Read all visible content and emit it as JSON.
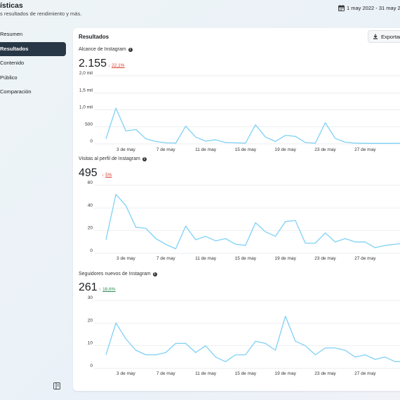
{
  "header": {
    "title": "ísticas",
    "subtitle": "s resultados de rendimiento y más.",
    "date_range": "1 may 2022 - 31 may 202"
  },
  "sidebar": {
    "items": [
      {
        "label": "Resumen",
        "active": false
      },
      {
        "label": "Resultados",
        "active": true
      },
      {
        "label": "Contenido",
        "active": false
      },
      {
        "label": "Público",
        "active": false
      },
      {
        "label": "Comparación",
        "active": false
      }
    ]
  },
  "card": {
    "title": "Resultados",
    "export_label": "Exportar"
  },
  "colors": {
    "accent": "#283746",
    "line": "#7fd1f5",
    "down": "#d93a2b",
    "up": "#2e8b57"
  },
  "metrics": [
    {
      "label": "Alcance de Instagram",
      "value": "2.155",
      "delta": "22,1%",
      "direction": "down"
    },
    {
      "label": "Visitas al perfil de Instagram",
      "value": "495",
      "delta": "5%",
      "direction": "down"
    },
    {
      "label": "Seguidores nuevos de Instagram",
      "value": "261",
      "delta": "18,6%",
      "direction": "up"
    }
  ],
  "chart_data": [
    {
      "type": "line",
      "title": "Alcance de Instagram",
      "x_tick_labels": [
        "3 de may",
        "7 de may",
        "11 de may",
        "15 de may",
        "19 de may",
        "23 de may",
        "27 de may",
        "3"
      ],
      "y_tick_labels": [
        "0",
        "500",
        "1,0 mil",
        "1,5 mil",
        "2,0 mil"
      ],
      "ylim": [
        0,
        2000
      ],
      "grid": true,
      "x": [
        1,
        2,
        3,
        4,
        5,
        6,
        7,
        8,
        9,
        10,
        11,
        12,
        13,
        14,
        15,
        16,
        17,
        18,
        19,
        20,
        21,
        22,
        23,
        24,
        25,
        26,
        27,
        28,
        29,
        30,
        31
      ],
      "values": [
        150,
        1050,
        380,
        420,
        150,
        70,
        30,
        20,
        520,
        200,
        80,
        120,
        40,
        30,
        20,
        560,
        200,
        70,
        250,
        220,
        40,
        20,
        620,
        160,
        50,
        20,
        15,
        15,
        15,
        15,
        20
      ]
    },
    {
      "type": "line",
      "title": "Visitas al perfil de Instagram",
      "x_tick_labels": [
        "3 de may",
        "7 de may",
        "11 de may",
        "15 de may",
        "19 de may",
        "23 de may",
        "27 de may",
        "3"
      ],
      "y_tick_labels": [
        "0",
        "20",
        "40",
        "60"
      ],
      "ylim": [
        0,
        60
      ],
      "grid": true,
      "x": [
        1,
        2,
        3,
        4,
        5,
        6,
        7,
        8,
        9,
        10,
        11,
        12,
        13,
        14,
        15,
        16,
        17,
        18,
        19,
        20,
        21,
        22,
        23,
        24,
        25,
        26,
        27,
        28,
        29,
        30,
        31
      ],
      "values": [
        12,
        52,
        42,
        23,
        22,
        13,
        8,
        4,
        24,
        12,
        15,
        11,
        13,
        8,
        7,
        27,
        19,
        15,
        28,
        29,
        9,
        9,
        18,
        10,
        13,
        10,
        10,
        5,
        7,
        8,
        9
      ]
    },
    {
      "type": "line",
      "title": "Seguidores nuevos de Instagram",
      "x_tick_labels": [
        "3 de may",
        "7 de may",
        "11 de may",
        "15 de may",
        "19 de may",
        "23 de may",
        "27 de may",
        "3"
      ],
      "y_tick_labels": [
        "0",
        "10",
        "20",
        "30"
      ],
      "ylim": [
        0,
        30
      ],
      "grid": true,
      "x": [
        1,
        2,
        3,
        4,
        5,
        6,
        7,
        8,
        9,
        10,
        11,
        12,
        13,
        14,
        15,
        16,
        17,
        18,
        19,
        20,
        21,
        22,
        23,
        24,
        25,
        26,
        27,
        28,
        29,
        30,
        31
      ],
      "values": [
        6,
        20,
        13,
        8,
        6,
        6,
        7,
        11,
        11,
        7,
        10,
        5,
        3,
        6,
        6,
        12,
        11,
        8,
        23,
        12,
        10,
        6,
        9,
        9,
        8,
        5,
        6,
        4,
        5,
        3,
        3
      ]
    }
  ]
}
